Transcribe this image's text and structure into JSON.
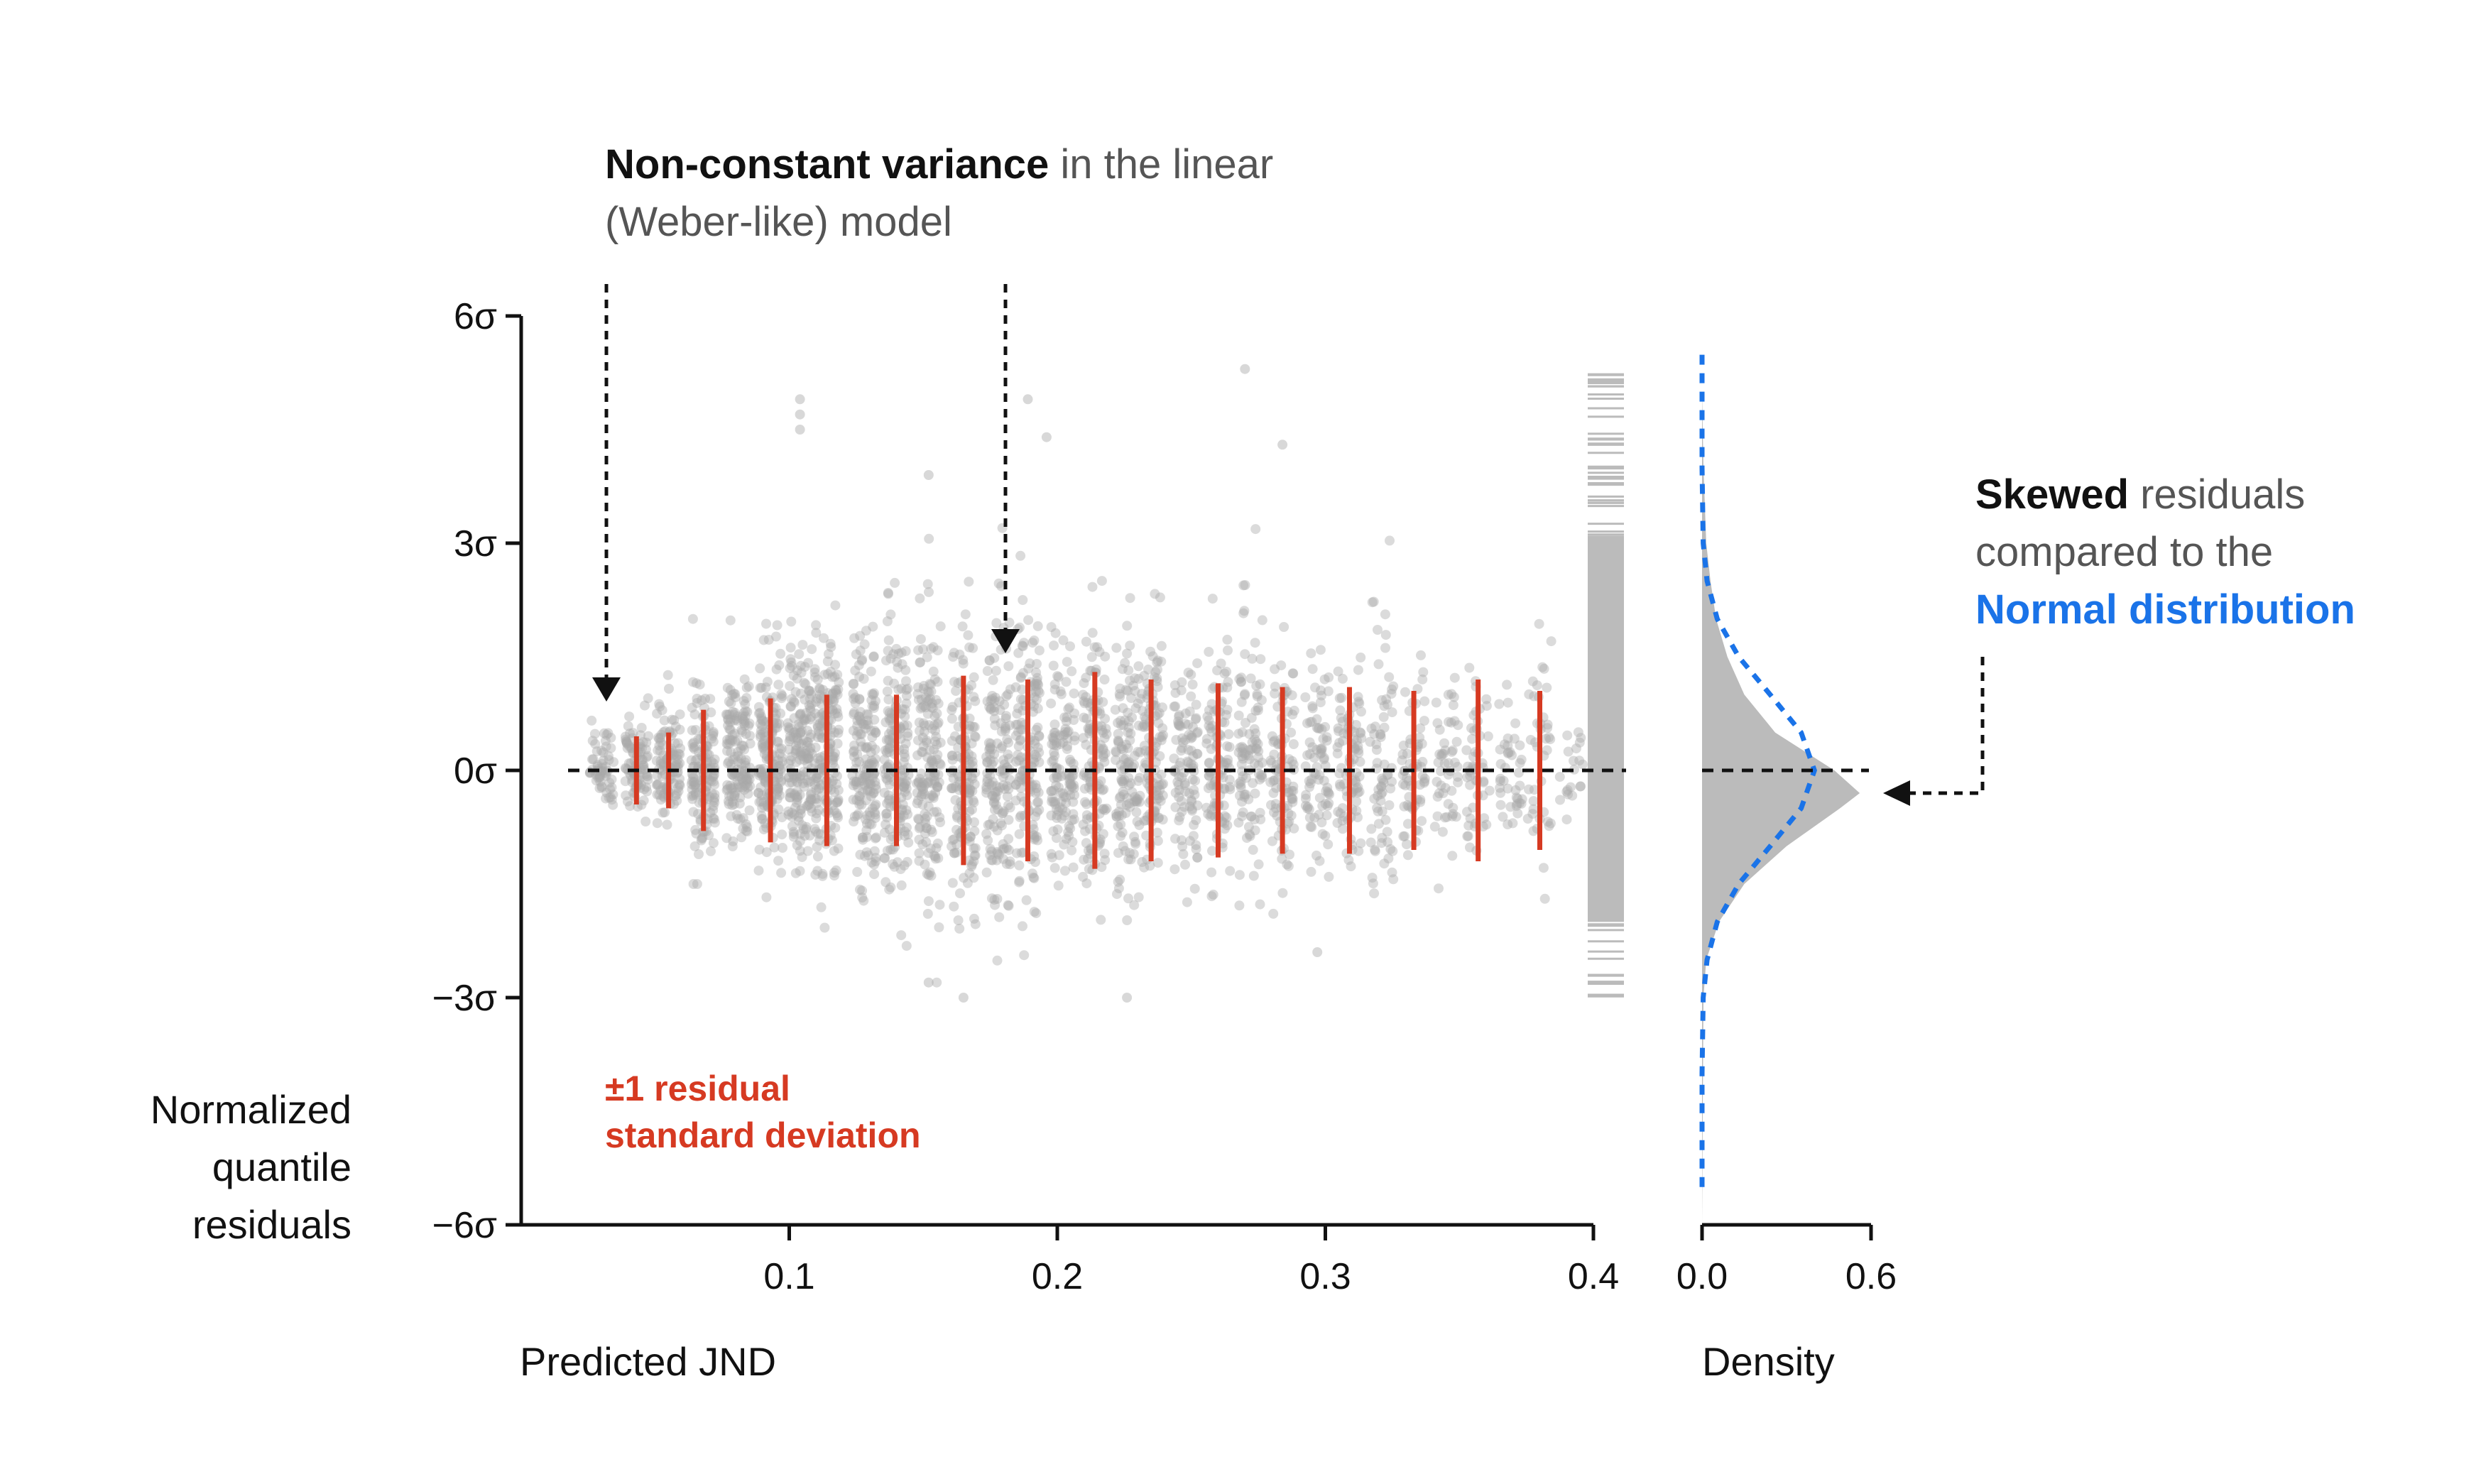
{
  "chart_data": [
    {
      "type": "scatter",
      "title": "",
      "xlabel": "Predicted JND",
      "ylabel": "Normalized quantile residuals",
      "xlim": [
        0.0,
        0.4
      ],
      "ylim": [
        -6,
        6
      ],
      "x_ticks": [
        0.1,
        0.2,
        0.3,
        0.4
      ],
      "y_ticks": [
        "6σ",
        "3σ",
        "0σ",
        "−3σ",
        "−6σ"
      ],
      "y_tick_values": [
        6,
        3,
        0,
        -3,
        -6
      ],
      "reference_line": 0,
      "point_color": "#a9a9a9",
      "sd_bar_color": "#d63a22",
      "sd_bars": [
        {
          "x": 0.043,
          "sd": 0.45
        },
        {
          "x": 0.055,
          "sd": 0.5
        },
        {
          "x": 0.068,
          "sd": 0.8
        },
        {
          "x": 0.093,
          "sd": 0.95
        },
        {
          "x": 0.114,
          "sd": 1.0
        },
        {
          "x": 0.14,
          "sd": 1.0
        },
        {
          "x": 0.165,
          "sd": 1.25
        },
        {
          "x": 0.189,
          "sd": 1.2
        },
        {
          "x": 0.214,
          "sd": 1.3
        },
        {
          "x": 0.235,
          "sd": 1.2
        },
        {
          "x": 0.26,
          "sd": 1.15
        },
        {
          "x": 0.284,
          "sd": 1.1
        },
        {
          "x": 0.309,
          "sd": 1.1
        },
        {
          "x": 0.333,
          "sd": 1.05
        },
        {
          "x": 0.357,
          "sd": 1.2
        },
        {
          "x": 0.38,
          "sd": 1.05
        }
      ],
      "bins": [
        {
          "x": 0.03,
          "min": -0.6,
          "max": 1.3,
          "n": 60
        },
        {
          "x": 0.043,
          "min": -0.8,
          "max": 1.4,
          "n": 90
        },
        {
          "x": 0.055,
          "min": -1.0,
          "max": 1.6,
          "n": 110
        },
        {
          "x": 0.068,
          "min": -1.5,
          "max": 2.0,
          "n": 140
        },
        {
          "x": 0.081,
          "min": -1.6,
          "max": 2.2,
          "n": 150
        },
        {
          "x": 0.093,
          "min": -1.9,
          "max": 2.6,
          "n": 170
        },
        {
          "x": 0.104,
          "min": -2.0,
          "max": 3.0,
          "n": 180
        },
        {
          "x": 0.114,
          "min": -2.2,
          "max": 3.5,
          "n": 180
        },
        {
          "x": 0.128,
          "min": -2.4,
          "max": 3.0,
          "n": 170
        },
        {
          "x": 0.14,
          "min": -2.5,
          "max": 3.4,
          "n": 170
        },
        {
          "x": 0.152,
          "min": -2.8,
          "max": 3.2,
          "n": 160
        },
        {
          "x": 0.165,
          "min": -2.9,
          "max": 3.0,
          "n": 150
        },
        {
          "x": 0.178,
          "min": -2.8,
          "max": 3.2,
          "n": 150
        },
        {
          "x": 0.189,
          "min": -2.6,
          "max": 3.6,
          "n": 150
        },
        {
          "x": 0.202,
          "min": -2.4,
          "max": 2.8,
          "n": 130
        },
        {
          "x": 0.214,
          "min": -2.6,
          "max": 3.0,
          "n": 130
        },
        {
          "x": 0.226,
          "min": -2.8,
          "max": 3.0,
          "n": 120
        },
        {
          "x": 0.235,
          "min": -2.5,
          "max": 3.2,
          "n": 120
        },
        {
          "x": 0.248,
          "min": -2.2,
          "max": 2.8,
          "n": 100
        },
        {
          "x": 0.26,
          "min": -2.2,
          "max": 3.0,
          "n": 110
        },
        {
          "x": 0.272,
          "min": -2.0,
          "max": 3.2,
          "n": 100
        },
        {
          "x": 0.284,
          "min": -2.2,
          "max": 2.6,
          "n": 90
        },
        {
          "x": 0.297,
          "min": -2.0,
          "max": 2.8,
          "n": 80
        },
        {
          "x": 0.309,
          "min": -2.2,
          "max": 2.6,
          "n": 90
        },
        {
          "x": 0.321,
          "min": -2.2,
          "max": 3.5,
          "n": 70
        },
        {
          "x": 0.333,
          "min": -2.0,
          "max": 2.4,
          "n": 60
        },
        {
          "x": 0.345,
          "min": -1.8,
          "max": 2.0,
          "n": 50
        },
        {
          "x": 0.357,
          "min": -1.9,
          "max": 2.1,
          "n": 50
        },
        {
          "x": 0.369,
          "min": -1.5,
          "max": 1.6,
          "n": 40
        },
        {
          "x": 0.38,
          "min": -2.2,
          "max": 2.8,
          "n": 40
        },
        {
          "x": 0.392,
          "min": -1.0,
          "max": 1.2,
          "n": 20
        }
      ],
      "outliers": [
        {
          "x": 0.104,
          "y": 4.9
        },
        {
          "x": 0.104,
          "y": 4.7
        },
        {
          "x": 0.104,
          "y": 4.5
        },
        {
          "x": 0.152,
          "y": 3.9
        },
        {
          "x": 0.189,
          "y": 4.9
        },
        {
          "x": 0.196,
          "y": 4.4
        },
        {
          "x": 0.27,
          "y": 5.3
        },
        {
          "x": 0.284,
          "y": 4.3
        },
        {
          "x": 0.152,
          "y": -2.8
        },
        {
          "x": 0.165,
          "y": -3.0
        },
        {
          "x": 0.226,
          "y": -3.0
        },
        {
          "x": 0.297,
          "y": -2.4
        }
      ],
      "rug": {
        "color": "#bbbbbb",
        "min": -3.0,
        "max": 5.3,
        "dense_min": -2.0,
        "dense_max": 3.1
      }
    },
    {
      "type": "area",
      "xlabel": "Density",
      "x_ticks": [
        "0.0",
        "0.6"
      ],
      "x_tick_values": [
        0.0,
        0.6
      ],
      "xlim": [
        0.0,
        0.6
      ],
      "ylim": [
        -6,
        6
      ],
      "reference_line": 0,
      "residual_density_color": "#bbbbbb",
      "normal_curve_color": "#1a73e8",
      "normal_curve_style": "dashed",
      "residual_density": {
        "y": [
          -6.0,
          -3.0,
          -2.5,
          -2.0,
          -1.5,
          -1.0,
          -0.5,
          -0.3,
          0.0,
          0.5,
          1.0,
          1.5,
          2.0,
          2.5,
          3.0,
          4.0,
          5.0,
          6.0
        ],
        "density": [
          0.0,
          0.005,
          0.015,
          0.06,
          0.15,
          0.3,
          0.49,
          0.56,
          0.47,
          0.26,
          0.15,
          0.09,
          0.05,
          0.03,
          0.015,
          0.005,
          0.0,
          0.0
        ]
      },
      "normal_density": {
        "y": [
          -5.5,
          -4.0,
          -3.0,
          -2.5,
          -2.0,
          -1.5,
          -1.0,
          -0.5,
          0.0,
          0.5,
          1.0,
          1.5,
          2.0,
          2.5,
          3.0,
          4.0,
          5.5
        ],
        "density": [
          0.0,
          0.0001,
          0.004,
          0.018,
          0.054,
          0.13,
          0.242,
          0.352,
          0.399,
          0.352,
          0.242,
          0.13,
          0.054,
          0.018,
          0.004,
          0.0001,
          0.0
        ]
      }
    }
  ],
  "annotations": {
    "variance_bold": "Non-constant variance",
    "variance_rest_line1": " in the linear",
    "variance_line2": "(Weber-like) model",
    "skew_bold": "Skewed",
    "skew_rest_line1": " residuals",
    "skew_line2": "compared to the",
    "skew_line3": "Normal distribution",
    "sd_label_line1": "±1 residual",
    "sd_label_line2": "standard deviation",
    "ylabel_line1": "Normalized",
    "ylabel_line2": "quantile",
    "ylabel_line3": "residuals"
  }
}
